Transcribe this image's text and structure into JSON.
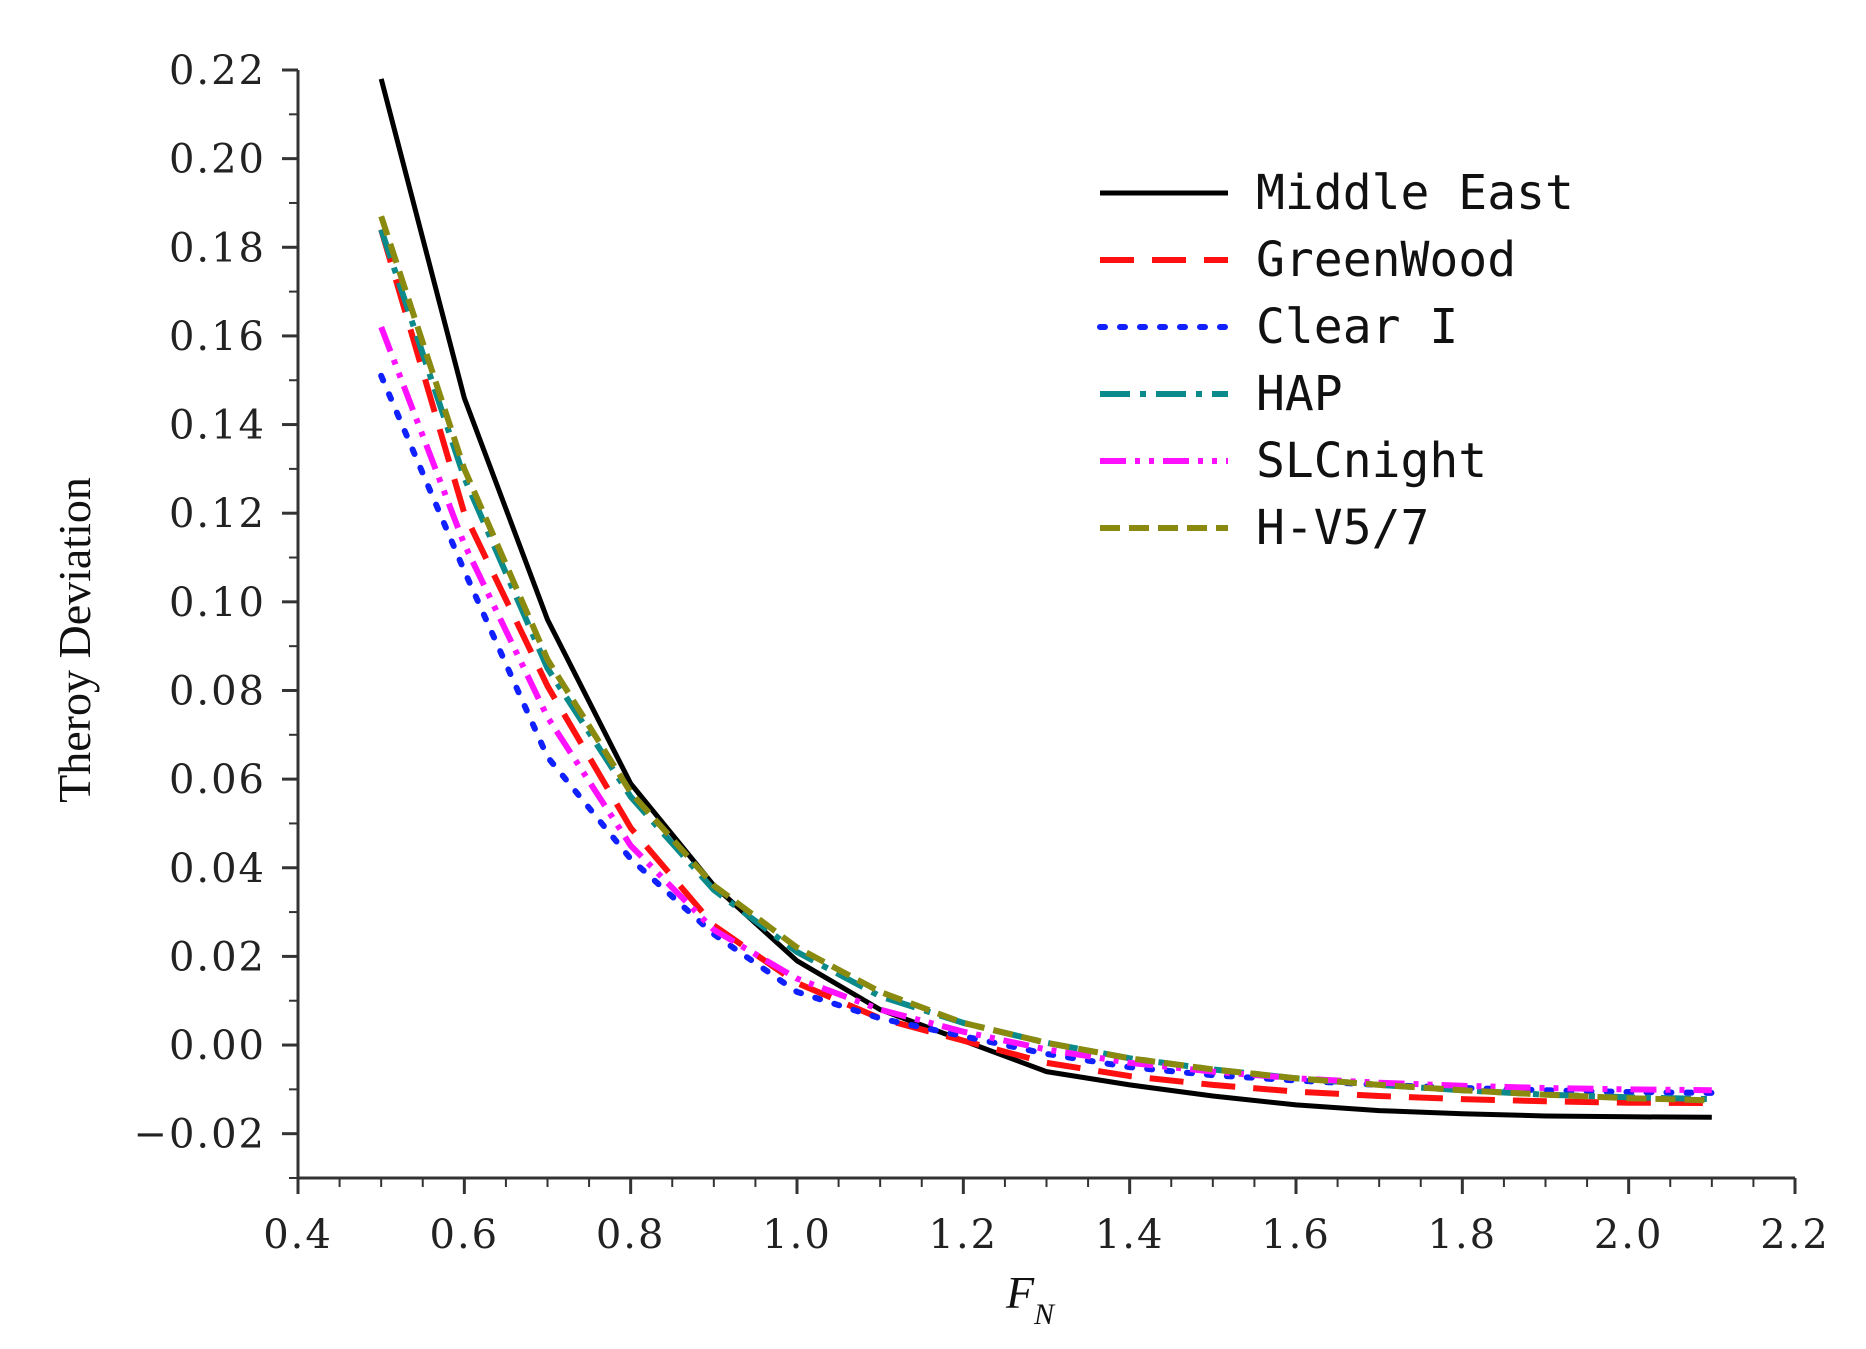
{
  "chart_data": {
    "type": "line",
    "title": "",
    "xlabel": "F",
    "xlabel_subscript": "N",
    "ylabel": "Theroy Deviation",
    "xlim": [
      0.4,
      2.2
    ],
    "ylim": [
      -0.03,
      0.22
    ],
    "xticks": [
      "0.4",
      "0.6",
      "0.8",
      "1.0",
      "1.2",
      "1.4",
      "1.6",
      "1.8",
      "2.0",
      "2.2"
    ],
    "yticks": [
      "-0.02",
      "0.00",
      "0.02",
      "0.04",
      "0.06",
      "0.08",
      "0.10",
      "0.12",
      "0.14",
      "0.16",
      "0.18",
      "0.20",
      "0.22"
    ],
    "legend_position": "top-right",
    "x": [
      0.5,
      0.6,
      0.7,
      0.8,
      0.9,
      1.0,
      1.1,
      1.2,
      1.3,
      1.4,
      1.5,
      1.6,
      1.7,
      1.8,
      1.9,
      2.0,
      2.1
    ],
    "series": [
      {
        "name": "Middle East",
        "color": "#000000",
        "style": "solid",
        "values": [
          0.218,
          0.146,
          0.096,
          0.059,
          0.036,
          0.019,
          0.008,
          0.001,
          -0.006,
          -0.009,
          -0.0115,
          -0.0135,
          -0.0148,
          -0.0155,
          -0.016,
          -0.0162,
          -0.0163
        ]
      },
      {
        "name": "GreenWood",
        "color": "#ff1010",
        "style": "dash",
        "values": [
          0.184,
          0.12,
          0.081,
          0.049,
          0.027,
          0.014,
          0.006,
          0.001,
          -0.004,
          -0.007,
          -0.009,
          -0.0105,
          -0.0115,
          -0.0122,
          -0.0127,
          -0.013,
          -0.0131
        ]
      },
      {
        "name": "Clear I",
        "color": "#1020ff",
        "style": "dot",
        "values": [
          0.151,
          0.107,
          0.065,
          0.042,
          0.025,
          0.012,
          0.006,
          0.002,
          -0.002,
          -0.005,
          -0.0068,
          -0.008,
          -0.009,
          -0.0097,
          -0.0102,
          -0.0106,
          -0.0108
        ]
      },
      {
        "name": "HAP",
        "color": "#0a8a8a",
        "style": "dashdot",
        "values": [
          0.184,
          0.128,
          0.085,
          0.056,
          0.035,
          0.021,
          0.011,
          0.005,
          0.0005,
          -0.003,
          -0.0055,
          -0.0075,
          -0.009,
          -0.0102,
          -0.0112,
          -0.0118,
          -0.0122
        ]
      },
      {
        "name": "SLCnight",
        "color": "#ff10ff",
        "style": "dashdotdot",
        "values": [
          0.162,
          0.113,
          0.074,
          0.045,
          0.026,
          0.015,
          0.008,
          0.003,
          -0.001,
          -0.004,
          -0.006,
          -0.0075,
          -0.0085,
          -0.0092,
          -0.0097,
          -0.01,
          -0.0102
        ]
      },
      {
        "name": "H-V5/7",
        "color": "#8a8a10",
        "style": "shortdash",
        "values": [
          0.187,
          0.13,
          0.087,
          0.057,
          0.036,
          0.022,
          0.012,
          0.005,
          0.0005,
          -0.003,
          -0.0055,
          -0.0075,
          -0.009,
          -0.0102,
          -0.0112,
          -0.012,
          -0.0125
        ]
      }
    ]
  }
}
